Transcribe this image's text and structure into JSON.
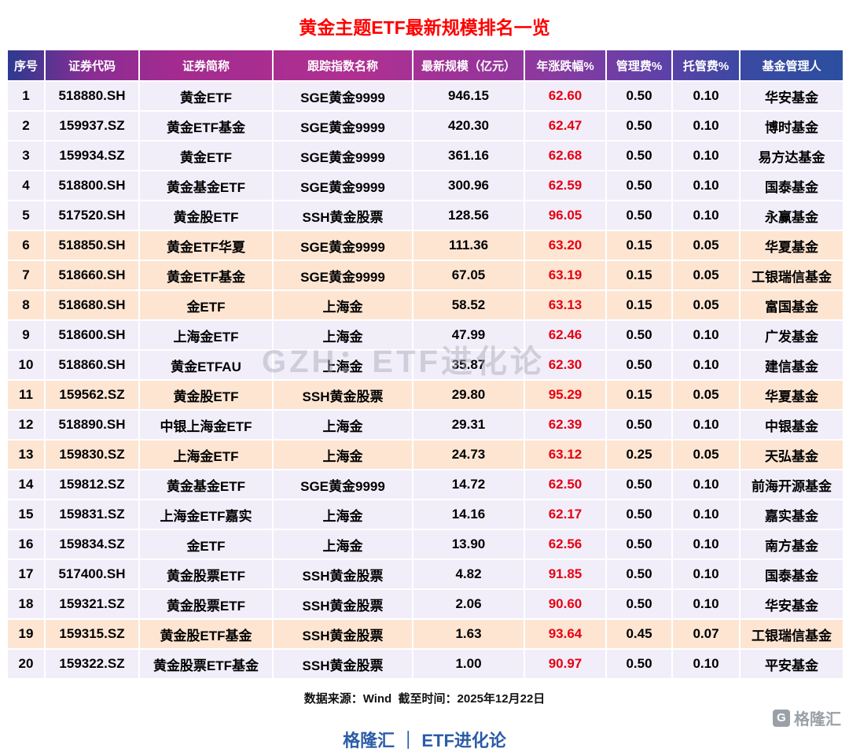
{
  "page": {
    "source_note": "数据来源：Wind  截至时间：2025年12月22日",
    "brand": "格隆汇 ｜ ETF进化论",
    "watermark": "GZH：ETF进化论",
    "logo_text": "格隆汇"
  },
  "colors": {
    "title_red": "#ff0000",
    "change_red": "#e60012",
    "row_lavender": "#f1eefa",
    "row_peach": "#fde5d2",
    "brand_blue": "#2b5ca8"
  },
  "chart_data": {
    "type": "table",
    "title": "黄金主题ETF最新规模排名一览",
    "columns": [
      "序号",
      "证券代码",
      "证券简称",
      "跟踪指数名称",
      "最新规模（亿元）",
      "年涨跌幅%",
      "管理费%",
      "托管费%",
      "基金管理人"
    ],
    "rows": [
      [
        "1",
        "518880.SH",
        "黄金ETF",
        "SGE黄金9999",
        "946.15",
        "62.60",
        "0.50",
        "0.10",
        "华安基金"
      ],
      [
        "2",
        "159937.SZ",
        "黄金ETF基金",
        "SGE黄金9999",
        "420.30",
        "62.47",
        "0.50",
        "0.10",
        "博时基金"
      ],
      [
        "3",
        "159934.SZ",
        "黄金ETF",
        "SGE黄金9999",
        "361.16",
        "62.68",
        "0.50",
        "0.10",
        "易方达基金"
      ],
      [
        "4",
        "518800.SH",
        "黄金基金ETF",
        "SGE黄金9999",
        "300.96",
        "62.59",
        "0.50",
        "0.10",
        "国泰基金"
      ],
      [
        "5",
        "517520.SH",
        "黄金股ETF",
        "SSH黄金股票",
        "128.56",
        "96.05",
        "0.50",
        "0.10",
        "永赢基金"
      ],
      [
        "6",
        "518850.SH",
        "黄金ETF华夏",
        "SGE黄金9999",
        "111.36",
        "63.20",
        "0.15",
        "0.05",
        "华夏基金"
      ],
      [
        "7",
        "518660.SH",
        "黄金ETF基金",
        "SGE黄金9999",
        "67.05",
        "63.19",
        "0.15",
        "0.05",
        "工银瑞信基金"
      ],
      [
        "8",
        "518680.SH",
        "金ETF",
        "上海金",
        "58.52",
        "63.13",
        "0.15",
        "0.05",
        "富国基金"
      ],
      [
        "9",
        "518600.SH",
        "上海金ETF",
        "上海金",
        "47.99",
        "62.46",
        "0.50",
        "0.10",
        "广发基金"
      ],
      [
        "10",
        "518860.SH",
        "黄金ETFAU",
        "上海金",
        "35.87",
        "62.30",
        "0.50",
        "0.10",
        "建信基金"
      ],
      [
        "11",
        "159562.SZ",
        "黄金股ETF",
        "SSH黄金股票",
        "29.80",
        "95.29",
        "0.15",
        "0.05",
        "华夏基金"
      ],
      [
        "12",
        "518890.SH",
        "中银上海金ETF",
        "上海金",
        "29.31",
        "62.39",
        "0.50",
        "0.10",
        "中银基金"
      ],
      [
        "13",
        "159830.SZ",
        "上海金ETF",
        "上海金",
        "24.73",
        "63.12",
        "0.25",
        "0.05",
        "天弘基金"
      ],
      [
        "14",
        "159812.SZ",
        "黄金基金ETF",
        "SGE黄金9999",
        "14.72",
        "62.50",
        "0.50",
        "0.10",
        "前海开源基金"
      ],
      [
        "15",
        "159831.SZ",
        "上海金ETF嘉实",
        "上海金",
        "14.16",
        "62.17",
        "0.50",
        "0.10",
        "嘉实基金"
      ],
      [
        "16",
        "159834.SZ",
        "金ETF",
        "上海金",
        "13.90",
        "62.56",
        "0.50",
        "0.10",
        "南方基金"
      ],
      [
        "17",
        "517400.SH",
        "黄金股票ETF",
        "SSH黄金股票",
        "4.82",
        "91.85",
        "0.50",
        "0.10",
        "国泰基金"
      ],
      [
        "18",
        "159321.SZ",
        "黄金股票ETF",
        "SSH黄金股票",
        "2.06",
        "90.60",
        "0.50",
        "0.10",
        "华安基金"
      ],
      [
        "19",
        "159315.SZ",
        "黄金股ETF基金",
        "SSH黄金股票",
        "1.63",
        "93.64",
        "0.45",
        "0.07",
        "工银瑞信基金"
      ],
      [
        "20",
        "159322.SZ",
        "黄金股票ETF基金",
        "SSH黄金股票",
        "1.00",
        "90.97",
        "0.50",
        "0.10",
        "平安基金"
      ]
    ],
    "highlighted_rows": [
      6,
      7,
      8,
      11,
      13,
      19
    ]
  }
}
